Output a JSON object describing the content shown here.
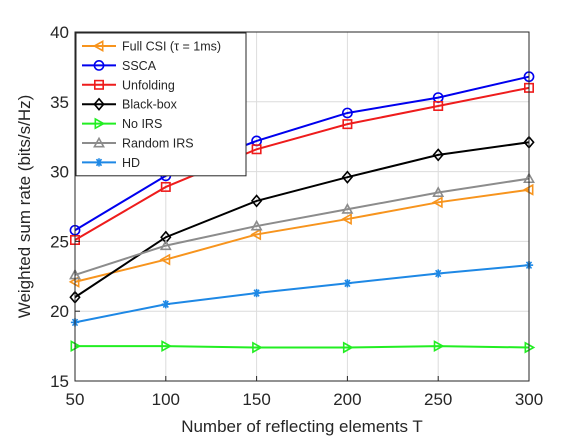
{
  "chart_data": {
    "type": "line",
    "xlabel": "Number of reflecting elements T",
    "ylabel": "Weighted sum rate (bits/s/Hz)",
    "xlim": [
      50,
      300
    ],
    "ylim": [
      15,
      40
    ],
    "x": [
      50,
      100,
      150,
      200,
      250,
      300
    ],
    "xticks": [
      50,
      100,
      150,
      200,
      250,
      300
    ],
    "yticks": [
      15,
      20,
      25,
      30,
      35,
      40
    ],
    "grid": true,
    "legend_position": "top-left",
    "series": [
      {
        "name": "Full CSI (τ = 1ms)",
        "color": "#f7941d",
        "marker": "triangle-left",
        "values": [
          22.1,
          23.7,
          25.5,
          26.6,
          27.8,
          28.7
        ]
      },
      {
        "name": "SSCA",
        "color": "#0000ee",
        "marker": "circle",
        "values": [
          25.8,
          29.7,
          32.2,
          34.2,
          35.3,
          36.8
        ]
      },
      {
        "name": "Unfolding",
        "color": "#ee1c1c",
        "marker": "square",
        "values": [
          25.1,
          28.9,
          31.6,
          33.4,
          34.7,
          36.0
        ]
      },
      {
        "name": "Black-box",
        "color": "#000000",
        "marker": "diamond",
        "values": [
          21.0,
          25.3,
          27.9,
          29.6,
          31.2,
          32.1
        ]
      },
      {
        "name": "No IRS",
        "color": "#22ee22",
        "marker": "triangle-right",
        "values": [
          17.5,
          17.5,
          17.4,
          17.4,
          17.5,
          17.4
        ]
      },
      {
        "name": "Random IRS",
        "color": "#8c8c8c",
        "marker": "triangle-up",
        "values": [
          22.6,
          24.7,
          26.1,
          27.3,
          28.5,
          29.5
        ]
      },
      {
        "name": "HD",
        "color": "#1e88e5",
        "marker": "asterisk",
        "values": [
          19.2,
          20.5,
          21.3,
          22.0,
          22.7,
          23.3
        ]
      }
    ]
  }
}
